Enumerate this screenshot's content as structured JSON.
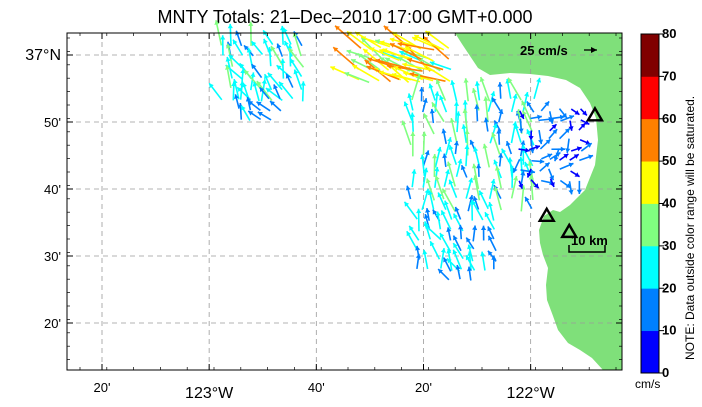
{
  "title": "MNTY Totals: 21–Dec–2010 17:00 GMT+0.000",
  "map": {
    "land_color": "#7fe07a",
    "water_color": "#ffffff",
    "x_ticks": [
      {
        "lon": -123.3333,
        "label": "20'",
        "major": false
      },
      {
        "lon": -123.0,
        "label": "123°W",
        "major": true
      },
      {
        "lon": -122.6667,
        "label": "40'",
        "major": false
      },
      {
        "lon": -122.3333,
        "label": "20'",
        "major": false
      },
      {
        "lon": -122.0,
        "label": "122°W",
        "major": true
      }
    ],
    "y_ticks": [
      {
        "lat": 37.0,
        "label": "37°N",
        "major": true
      },
      {
        "lat": 36.8333,
        "label": "50'",
        "major": false
      },
      {
        "lat": 36.6667,
        "label": "40'",
        "major": false
      },
      {
        "lat": 36.5,
        "label": "30'",
        "major": false
      },
      {
        "lat": 36.3333,
        "label": "20'",
        "major": false
      }
    ],
    "reference_vector_label": "25 cm/s",
    "reference_vector_speed": 25,
    "scale_bar_label": "10 km",
    "scale_bar_km": 10,
    "sites": [
      {
        "lon": -121.8,
        "lat": 36.85
      },
      {
        "lon": -121.95,
        "lat": 36.6
      },
      {
        "lon": -121.88,
        "lat": 36.56
      }
    ]
  },
  "colorbar": {
    "ticks": [
      "80",
      "70",
      "60",
      "50",
      "40",
      "30",
      "20",
      "10",
      "0"
    ],
    "unit": "cm/s",
    "min": 0,
    "max": 80,
    "colors": [
      "#0000ff",
      "#0080ff",
      "#00ffff",
      "#80ff80",
      "#ffff00",
      "#ff8000",
      "#ff0000",
      "#800000"
    ],
    "note": "NOTE: Data outside color range will be saturated."
  }
}
